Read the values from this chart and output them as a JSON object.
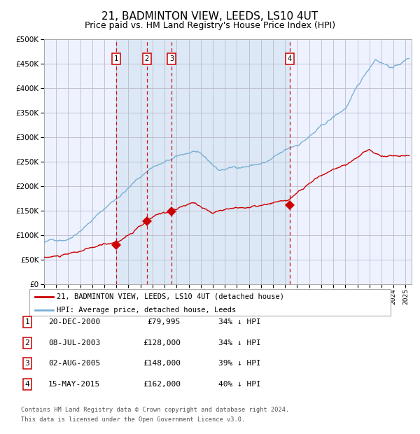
{
  "title": "21, BADMINTON VIEW, LEEDS, LS10 4UT",
  "subtitle": "Price paid vs. HM Land Registry's House Price Index (HPI)",
  "title_fontsize": 11,
  "subtitle_fontsize": 9,
  "background_color": "#ffffff",
  "plot_bg_color": "#eef2ff",
  "grid_color": "#bbbbcc",
  "red_line_color": "#cc0000",
  "blue_line_color": "#7ab0d4",
  "sale_marker_color": "#cc0000",
  "dashed_line_color": "#cc0000",
  "shaded_region_color": "#dce8f5",
  "ylim": [
    0,
    500000
  ],
  "yticks": [
    0,
    50000,
    100000,
    150000,
    200000,
    250000,
    300000,
    350000,
    400000,
    450000,
    500000
  ],
  "xlim_start": 1995.0,
  "xlim_end": 2025.5,
  "sale_dates": [
    2000.96,
    2003.52,
    2005.59,
    2015.37
  ],
  "sale_prices": [
    79995,
    128000,
    148000,
    162000
  ],
  "sale_labels": [
    "1",
    "2",
    "3",
    "4"
  ],
  "sale_date_strings": [
    "20-DEC-2000",
    "08-JUL-2003",
    "02-AUG-2005",
    "15-MAY-2015"
  ],
  "sale_price_strings": [
    "£79,995",
    "£128,000",
    "£148,000",
    "£162,000"
  ],
  "sale_pct_strings": [
    "34% ↓ HPI",
    "34% ↓ HPI",
    "39% ↓ HPI",
    "40% ↓ HPI"
  ],
  "legend_label_red": "21, BADMINTON VIEW, LEEDS, LS10 4UT (detached house)",
  "legend_label_blue": "HPI: Average price, detached house, Leeds",
  "footer_line1": "Contains HM Land Registry data © Crown copyright and database right 2024.",
  "footer_line2": "This data is licensed under the Open Government Licence v3.0."
}
